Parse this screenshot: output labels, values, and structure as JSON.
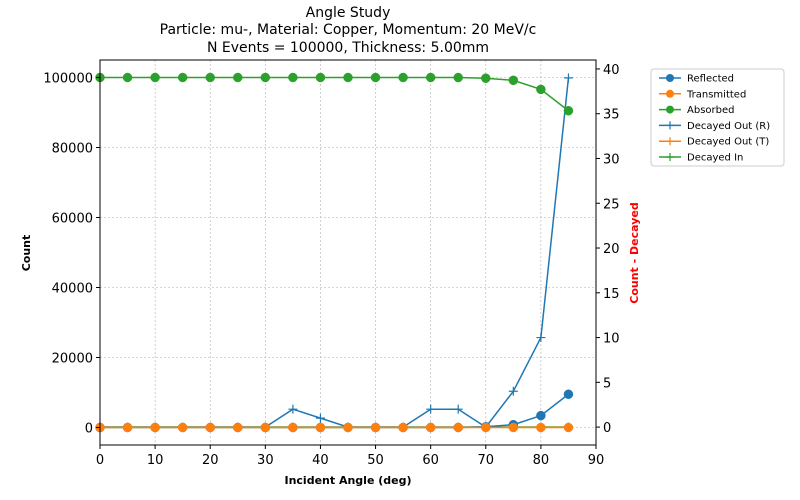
{
  "chart_data": {
    "type": "line",
    "title_lines": [
      "Angle Study",
      "Particle: mu-, Material: Copper, Momentum: 20 MeV/c",
      "N Events = 100000, Thickness: 5.00mm"
    ],
    "xlabel": "Incident Angle (deg)",
    "ylabel": "Count",
    "ylabel_right": "Count - Decayed",
    "ylabel_right_color": "#ff0000",
    "xlim": [
      0,
      90
    ],
    "ylim": [
      -5000,
      105000
    ],
    "ylim_right": [
      -2,
      41
    ],
    "xticks": [
      0,
      10,
      20,
      30,
      40,
      50,
      60,
      70,
      80,
      90
    ],
    "yticks": [
      0,
      20000,
      40000,
      60000,
      80000,
      100000
    ],
    "yticks_right": [
      0,
      5,
      10,
      15,
      20,
      25,
      30,
      35,
      40
    ],
    "grid": true,
    "legend_position": "outside-top-right",
    "x": [
      0,
      5,
      10,
      15,
      20,
      25,
      30,
      35,
      40,
      45,
      50,
      55,
      60,
      65,
      70,
      75,
      80,
      85
    ],
    "series": [
      {
        "name": "Reflected",
        "axis": "left",
        "marker": "circle",
        "color": "#1f77b4",
        "values": [
          0,
          0,
          0,
          0,
          0,
          0,
          0,
          0,
          0,
          0,
          0,
          0,
          0,
          10,
          200,
          800,
          3400,
          9500
        ]
      },
      {
        "name": "Transmitted",
        "axis": "left",
        "marker": "circle",
        "color": "#ff7f0e",
        "values": [
          0,
          0,
          0,
          0,
          0,
          0,
          0,
          0,
          0,
          0,
          0,
          0,
          0,
          0,
          0,
          0,
          0,
          0
        ]
      },
      {
        "name": "Absorbed",
        "axis": "left",
        "marker": "circle",
        "color": "#2ca02c",
        "values": [
          100000,
          100000,
          100000,
          100000,
          100000,
          100000,
          100000,
          100000,
          100000,
          100000,
          100000,
          100000,
          100000,
          99990,
          99800,
          99200,
          96600,
          90500
        ]
      },
      {
        "name": "Decayed Out (R)",
        "axis": "right",
        "marker": "plus",
        "color": "#1f77b4",
        "values": [
          0,
          0,
          0,
          0,
          0,
          0,
          0,
          2,
          1,
          0,
          0,
          0,
          2,
          2,
          0,
          4,
          10,
          39
        ]
      },
      {
        "name": "Decayed Out (T)",
        "axis": "right",
        "marker": "plus",
        "color": "#ff7f0e",
        "values": [
          0,
          0,
          0,
          0,
          0,
          0,
          0,
          0,
          0,
          0,
          0,
          0,
          0,
          0,
          0,
          0,
          0,
          0
        ]
      },
      {
        "name": "Decayed In",
        "axis": "right",
        "marker": "plus",
        "color": "#2ca02c",
        "values": [
          0,
          0,
          0,
          0,
          0,
          0,
          0,
          0,
          0,
          0,
          0,
          0,
          0,
          0,
          0,
          0,
          0,
          0
        ]
      }
    ]
  }
}
